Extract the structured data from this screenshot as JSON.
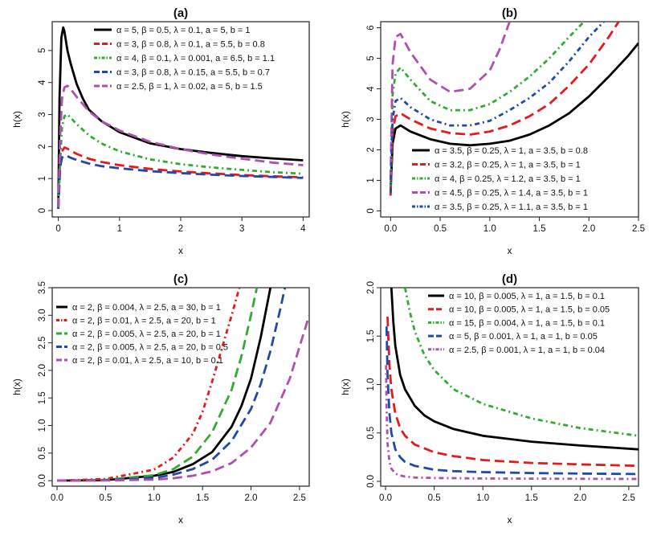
{
  "chart_data": [
    {
      "type": "line",
      "title": "(a)",
      "xlabel": "x",
      "ylabel": "h(x)",
      "xlim": [
        -0.1,
        4.1
      ],
      "ylim": [
        -0.2,
        5.9
      ],
      "xticks": [
        0,
        1,
        2,
        3,
        4
      ],
      "yticks": [
        0,
        1,
        2,
        3,
        4,
        5
      ],
      "xtick_labels": [
        "0",
        "1",
        "2",
        "3",
        "4"
      ],
      "ytick_labels": [
        "0",
        "1",
        "2",
        "3",
        "4",
        "5"
      ],
      "y_tick_labels_rotated": true,
      "legend_position": "top-center",
      "series": [
        {
          "name": "α = 5, β = 0.5, λ = 0.1, a = 5, b = 1",
          "color": "#000000",
          "dash": "solid",
          "x": [
            0,
            0.02,
            0.05,
            0.08,
            0.1,
            0.15,
            0.2,
            0.3,
            0.4,
            0.5,
            0.7,
            1.0,
            1.5,
            2.0,
            2.5,
            3.0,
            3.5,
            4.0
          ],
          "y": [
            0.1,
            3.5,
            5.4,
            5.72,
            5.6,
            5.0,
            4.6,
            3.95,
            3.5,
            3.15,
            2.8,
            2.45,
            2.1,
            1.92,
            1.8,
            1.7,
            1.63,
            1.57
          ]
        },
        {
          "name": "α = 3, β = 0.8, λ = 0.1, a = 5.5, b = 0.8",
          "color": "#e41a1c",
          "dash": "longdash",
          "x": [
            0,
            0.03,
            0.06,
            0.1,
            0.15,
            0.2,
            0.3,
            0.5,
            0.7,
            1.0,
            1.5,
            2.0,
            2.5,
            3.0,
            3.5,
            4.0
          ],
          "y": [
            0.05,
            1.5,
            1.85,
            1.97,
            1.93,
            1.87,
            1.77,
            1.62,
            1.52,
            1.42,
            1.3,
            1.22,
            1.16,
            1.11,
            1.07,
            1.04
          ]
        },
        {
          "name": "α = 4, β = 0.1, λ = 0.001, a = 6.5, b = 1.1",
          "color": "#33aa33",
          "dash": "dotdash",
          "x": [
            0,
            0.03,
            0.06,
            0.1,
            0.15,
            0.2,
            0.3,
            0.5,
            0.7,
            1.0,
            1.5,
            2.0,
            2.5,
            3.0,
            3.5,
            4.0
          ],
          "y": [
            0.05,
            1.5,
            2.6,
            2.95,
            3.0,
            2.9,
            2.7,
            2.35,
            2.1,
            1.85,
            1.6,
            1.45,
            1.35,
            1.27,
            1.2,
            1.15
          ]
        },
        {
          "name": "α = 3, β = 0.8, λ = 0.15, a = 5.5, b = 0.7",
          "color": "#1f4aa8",
          "dash": "longdash",
          "x": [
            0,
            0.03,
            0.06,
            0.1,
            0.15,
            0.2,
            0.3,
            0.5,
            0.7,
            1.0,
            1.5,
            2.0,
            2.5,
            3.0,
            3.5,
            4.0
          ],
          "y": [
            0.05,
            1.35,
            1.65,
            1.72,
            1.7,
            1.65,
            1.58,
            1.47,
            1.39,
            1.32,
            1.23,
            1.17,
            1.12,
            1.08,
            1.05,
            1.02
          ]
        },
        {
          "name": "α = 2.5, β = 1, λ = 0.02, a = 5, b = 1.5",
          "color": "#b04fb0",
          "dash": "longdash",
          "x": [
            0,
            0.03,
            0.06,
            0.1,
            0.15,
            0.2,
            0.3,
            0.5,
            0.7,
            1.0,
            1.5,
            2.0,
            2.5,
            3.0,
            3.5,
            4.0
          ],
          "y": [
            0.1,
            2.3,
            3.5,
            3.85,
            3.9,
            3.8,
            3.55,
            3.1,
            2.8,
            2.5,
            2.15,
            1.92,
            1.75,
            1.62,
            1.5,
            1.42
          ]
        }
      ]
    },
    {
      "type": "line",
      "title": "(b)",
      "xlabel": "x",
      "ylabel": "h(x)",
      "xlim": [
        -0.1,
        2.5
      ],
      "ylim": [
        -0.2,
        6.2
      ],
      "xticks": [
        0,
        0.5,
        1.0,
        1.5,
        2.0,
        2.5
      ],
      "yticks": [
        0,
        1,
        2,
        3,
        4,
        5,
        6
      ],
      "xtick_labels": [
        "0.0",
        "0.5",
        "1.0",
        "1.5",
        "2.0",
        "2.5"
      ],
      "ytick_labels": [
        "0",
        "1",
        "2",
        "3",
        "4",
        "5",
        "6"
      ],
      "y_tick_labels_rotated": true,
      "legend_position": "bottom-right",
      "series": [
        {
          "name": "α = 3.5, β = 0.25, λ = 1, a = 3.5, b = 0.8",
          "color": "#000000",
          "dash": "solid",
          "x": [
            0,
            0.02,
            0.05,
            0.1,
            0.2,
            0.4,
            0.6,
            0.8,
            1.0,
            1.2,
            1.4,
            1.6,
            1.8,
            2.0,
            2.2,
            2.4,
            2.5
          ],
          "y": [
            0.6,
            2.2,
            2.7,
            2.8,
            2.6,
            2.35,
            2.2,
            2.15,
            2.2,
            2.3,
            2.5,
            2.8,
            3.2,
            3.75,
            4.4,
            5.1,
            5.5
          ]
        },
        {
          "name": "α = 3.2, β = 0.25, λ = 1, a = 3.5, b = 1",
          "color": "#e41a1c",
          "dash": "longdash",
          "x": [
            0,
            0.02,
            0.05,
            0.1,
            0.2,
            0.4,
            0.6,
            0.8,
            1.0,
            1.2,
            1.4,
            1.6,
            1.8,
            2.0,
            2.2,
            2.3
          ],
          "y": [
            0.5,
            2.6,
            3.1,
            3.2,
            3.0,
            2.7,
            2.55,
            2.5,
            2.6,
            2.8,
            3.1,
            3.5,
            4.1,
            4.8,
            5.7,
            6.2
          ]
        },
        {
          "name": "α = 4, β = 0.25, λ = 1.2, a = 3.5, b = 1",
          "color": "#33aa33",
          "dash": "dotdash",
          "x": [
            0,
            0.02,
            0.05,
            0.1,
            0.2,
            0.4,
            0.6,
            0.8,
            1.0,
            1.2,
            1.4,
            1.6,
            1.8,
            1.95
          ],
          "y": [
            0.8,
            3.8,
            4.5,
            4.7,
            4.3,
            3.6,
            3.3,
            3.3,
            3.5,
            3.9,
            4.4,
            5.0,
            5.7,
            6.2
          ]
        },
        {
          "name": "α = 4.5, β = 0.25, λ = 1.4, a = 3.5, b = 1",
          "color": "#b04fb0",
          "dash": "longdash",
          "x": [
            0,
            0.02,
            0.05,
            0.1,
            0.2,
            0.4,
            0.6,
            0.8,
            1.0,
            1.1,
            1.2
          ],
          "y": [
            1.0,
            4.8,
            5.7,
            5.8,
            5.2,
            4.3,
            3.9,
            4.0,
            4.6,
            5.3,
            6.2
          ]
        },
        {
          "name": "α = 3.5, β = 0.25, λ = 1.1, a = 3.5, b = 1",
          "color": "#1f4aa8",
          "dash": "dotdash",
          "x": [
            0,
            0.02,
            0.05,
            0.1,
            0.2,
            0.4,
            0.6,
            0.8,
            1.0,
            1.2,
            1.4,
            1.6,
            1.8,
            2.0,
            2.15
          ],
          "y": [
            0.6,
            3.0,
            3.6,
            3.7,
            3.4,
            3.0,
            2.8,
            2.8,
            2.95,
            3.3,
            3.7,
            4.2,
            4.9,
            5.7,
            6.2
          ]
        }
      ]
    },
    {
      "type": "line",
      "title": "(c)",
      "xlabel": "x",
      "ylabel": "h(x)",
      "xlim": [
        -0.05,
        2.6
      ],
      "ylim": [
        -0.1,
        3.5
      ],
      "xticks": [
        0,
        0.5,
        1.0,
        1.5,
        2.0,
        2.5
      ],
      "yticks": [
        0,
        0.5,
        1.0,
        1.5,
        2.0,
        2.5,
        3.0,
        3.5
      ],
      "xtick_labels": [
        "0.0",
        "0.5",
        "1.0",
        "1.5",
        "2.0",
        "2.5"
      ],
      "ytick_labels": [
        "0.0",
        "0.5",
        "1.0",
        "1.5",
        "2.0",
        "2.5",
        "3.0",
        "3.5"
      ],
      "y_tick_labels_rotated": true,
      "legend_position": "top-left",
      "series": [
        {
          "name": "α = 2, β = 0.004, λ = 2.5, a = 30, b = 1",
          "color": "#000000",
          "dash": "solid",
          "x": [
            0,
            0.5,
            1.0,
            1.2,
            1.4,
            1.6,
            1.8,
            1.9,
            2.0,
            2.1,
            2.2
          ],
          "y": [
            0,
            0.01,
            0.09,
            0.16,
            0.3,
            0.52,
            0.98,
            1.35,
            1.85,
            2.6,
            3.5
          ]
        },
        {
          "name": "α = 2, β = 0.01, λ = 2.5, a = 20, b = 1",
          "color": "#e41a1c",
          "dash": "dotdash",
          "x": [
            0,
            0.5,
            1.0,
            1.2,
            1.4,
            1.5,
            1.6,
            1.7,
            1.8,
            1.88
          ],
          "y": [
            0,
            0.03,
            0.2,
            0.42,
            0.85,
            1.25,
            1.8,
            2.4,
            3.0,
            3.5
          ]
        },
        {
          "name": "α = 2, β = 0.005, λ = 2.5, a = 20, b = 1",
          "color": "#33aa33",
          "dash": "longdash",
          "x": [
            0,
            0.5,
            1.0,
            1.2,
            1.4,
            1.6,
            1.8,
            1.9,
            2.0,
            2.06
          ],
          "y": [
            0,
            0.015,
            0.1,
            0.21,
            0.44,
            0.88,
            1.65,
            2.25,
            3.0,
            3.5
          ]
        },
        {
          "name": "α = 2, β = 0.005, λ = 2.5, a = 20, b = 0.5",
          "color": "#1f4aa8",
          "dash": "longdash",
          "x": [
            0,
            0.5,
            1.0,
            1.2,
            1.4,
            1.6,
            1.8,
            2.0,
            2.1,
            2.2,
            2.3,
            2.35
          ],
          "y": [
            0,
            0.008,
            0.05,
            0.11,
            0.21,
            0.38,
            0.72,
            1.3,
            1.75,
            2.35,
            3.1,
            3.5
          ]
        },
        {
          "name": "α = 2, β = 0.01, λ = 2.5, a = 10, b = 0.1",
          "color": "#b04fb0",
          "dash": "longdash",
          "x": [
            0,
            0.5,
            1.0,
            1.2,
            1.4,
            1.6,
            1.8,
            2.0,
            2.2,
            2.4,
            2.6
          ],
          "y": [
            0,
            0.003,
            0.02,
            0.045,
            0.09,
            0.17,
            0.32,
            0.6,
            1.05,
            1.85,
            3.0
          ]
        }
      ]
    },
    {
      "type": "line",
      "title": "(d)",
      "xlabel": "x",
      "ylabel": "h(x)",
      "xlim": [
        -0.05,
        2.6
      ],
      "ylim": [
        -0.05,
        2.0
      ],
      "xticks": [
        0,
        0.5,
        1.0,
        1.5,
        2.0,
        2.5
      ],
      "yticks": [
        0,
        0.5,
        1.0,
        1.5,
        2.0
      ],
      "xtick_labels": [
        "0.0",
        "0.5",
        "1.0",
        "1.5",
        "2.0",
        "2.5"
      ],
      "ytick_labels": [
        "0.0",
        "0.5",
        "1.0",
        "1.5",
        "2.0"
      ],
      "y_tick_labels_rotated": true,
      "legend_position": "top-right",
      "series": [
        {
          "name": "α = 10, β = 0.005, λ = 1, a = 1.5, b = 0.1",
          "color": "#000000",
          "dash": "solid",
          "x": [
            0.06,
            0.08,
            0.1,
            0.15,
            0.2,
            0.3,
            0.4,
            0.5,
            0.7,
            1.0,
            1.5,
            2.0,
            2.6
          ],
          "y": [
            2.0,
            1.65,
            1.4,
            1.1,
            0.95,
            0.78,
            0.68,
            0.62,
            0.54,
            0.47,
            0.41,
            0.37,
            0.33
          ]
        },
        {
          "name": "α = 10, β = 0.005, λ = 1, a = 1.5, b = 0.05",
          "color": "#e41a1c",
          "dash": "longdash",
          "x": [
            0.02,
            0.04,
            0.06,
            0.1,
            0.15,
            0.2,
            0.3,
            0.5,
            0.7,
            1.0,
            1.5,
            2.0,
            2.6
          ],
          "y": [
            1.7,
            1.2,
            0.95,
            0.7,
            0.55,
            0.47,
            0.38,
            0.3,
            0.26,
            0.22,
            0.19,
            0.175,
            0.16
          ]
        },
        {
          "name": "α = 15, β = 0.004, λ = 1, a = 1.5, b = 0.1",
          "color": "#33aa33",
          "dash": "dotdash",
          "x": [
            0.2,
            0.25,
            0.3,
            0.4,
            0.5,
            0.7,
            1.0,
            1.5,
            2.0,
            2.6
          ],
          "y": [
            2.0,
            1.75,
            1.55,
            1.3,
            1.15,
            0.95,
            0.8,
            0.65,
            0.55,
            0.47
          ]
        },
        {
          "name": "α = 5, β = 0.001, λ = 1, a = 1, b = 0.05",
          "color": "#1f4aa8",
          "dash": "longdash",
          "x": [
            0.01,
            0.02,
            0.04,
            0.06,
            0.1,
            0.15,
            0.2,
            0.3,
            0.5,
            0.7,
            1.0,
            1.5,
            2.0,
            2.6
          ],
          "y": [
            1.6,
            1.1,
            0.7,
            0.5,
            0.33,
            0.25,
            0.2,
            0.16,
            0.12,
            0.105,
            0.095,
            0.085,
            0.08,
            0.075
          ]
        },
        {
          "name": "α = 2.5, β = 0.001, λ = 1, a = 1, b = 0.04",
          "color": "#b04fb0",
          "dash": "dotdash",
          "x": [
            0.005,
            0.01,
            0.02,
            0.04,
            0.06,
            0.1,
            0.15,
            0.2,
            0.3,
            0.5,
            1.0,
            1.5,
            2.0,
            2.6
          ],
          "y": [
            1.2,
            0.75,
            0.4,
            0.2,
            0.13,
            0.08,
            0.06,
            0.05,
            0.04,
            0.035,
            0.03,
            0.028,
            0.026,
            0.025
          ]
        }
      ]
    }
  ]
}
